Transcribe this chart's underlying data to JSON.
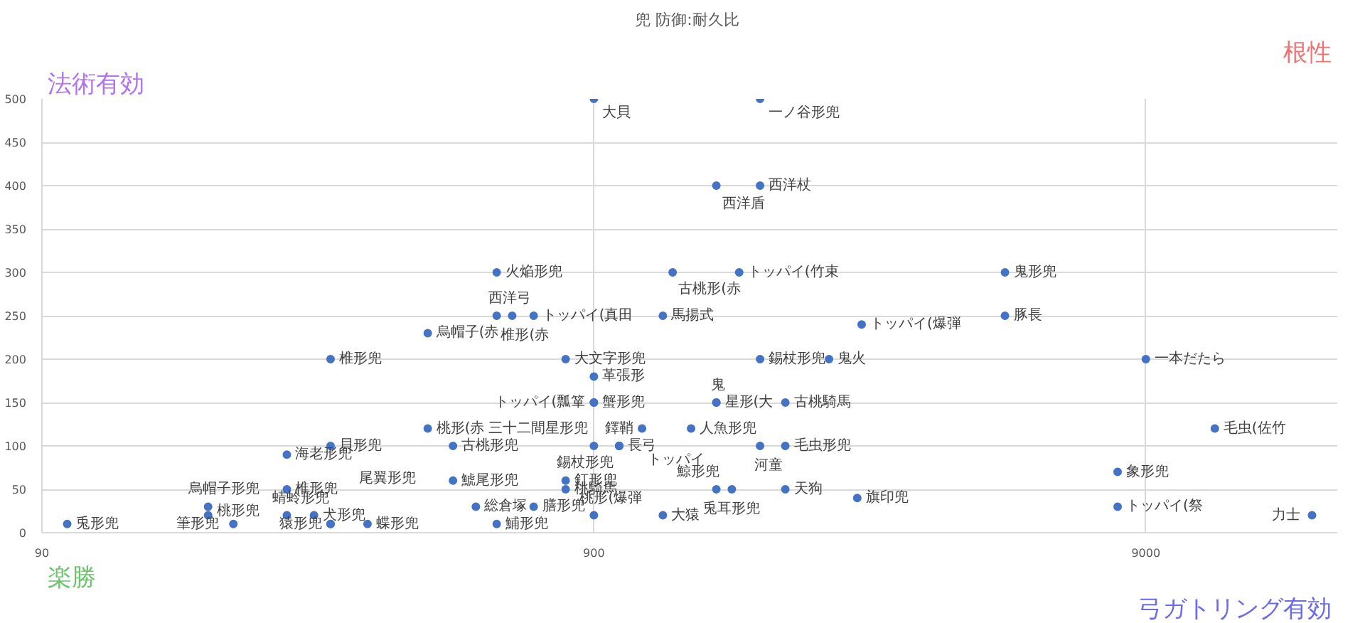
{
  "chart_data": {
    "type": "scatter",
    "title": "兜  防御:耐久比",
    "annotations": [
      "法術有効",
      "根性",
      "楽勝",
      "弓ガトリング有効"
    ],
    "log": "x",
    "xlim": [
      90,
      20000
    ],
    "xticks": [
      90,
      900,
      9000
    ],
    "ylim": [
      0,
      500
    ],
    "yticks": [
      0,
      50,
      100,
      150,
      200,
      250,
      300,
      350,
      400,
      450,
      500
    ],
    "grid": true,
    "marker": "circle",
    "series": [
      {
        "color": "#4472c4",
        "x": [
          900,
          1800,
          1500,
          1800,
          600,
          1250,
          1650,
          5000,
          600,
          640,
          700,
          1200,
          2750,
          5000,
          450,
          300,
          800,
          1800,
          2400,
          9000,
          900,
          900,
          900,
          1500,
          1500,
          2000,
          450,
          1100,
          1350,
          12000,
          300,
          500,
          900,
          1000,
          1000,
          1000,
          1800,
          2000,
          250,
          8000,
          500,
          800,
          800,
          250,
          1500,
          1600,
          2000,
          2700,
          180,
          550,
          700,
          8000,
          180,
          250,
          280,
          900,
          1200,
          18000,
          100,
          200,
          300,
          300,
          350,
          600
        ],
        "values": [
          500,
          500,
          400,
          400,
          300,
          300,
          300,
          300,
          250,
          250,
          250,
          250,
          240,
          250,
          230,
          200,
          200,
          200,
          200,
          200,
          180,
          150,
          150,
          150,
          150,
          150,
          120,
          120,
          120,
          120,
          100,
          100,
          100,
          100,
          100,
          100,
          100,
          100,
          90,
          70,
          60,
          60,
          50,
          50,
          50,
          50,
          50,
          40,
          30,
          30,
          30,
          30,
          20,
          20,
          20,
          20,
          20,
          20,
          10,
          10,
          10,
          10,
          10,
          10
        ],
        "value_labels": [
          "大貝",
          "一ノ谷形兜",
          "西洋盾",
          "西洋杖",
          "火焔形兜",
          "古桃形(赤",
          "トッパイ(竹束",
          "鬼形兜",
          "西洋弓",
          "椎形(赤",
          "トッパイ(真田",
          "馬揚式",
          "トッパイ(爆弾",
          "豚長",
          "烏帽子(赤",
          "椎形兜",
          "大文字形兜",
          "錫杖形兜",
          "鬼火",
          "一本だたら",
          "革張形",
          "蟹形兜",
          "トッパイ(瓢箪",
          "鬼",
          "星形(大",
          "古桃騎馬",
          "桃形(赤",
          "トッパイ",
          "人魚形兜",
          "毛虫(佐竹",
          "貝形兜",
          "古桃形兜",
          "三十二間星形兜",
          "長弓",
          "鐸鞘",
          "錫杖形兜",
          "河童",
          "毛虫形兜",
          "海老形兜",
          "象形兜",
          "鯱尾形兜",
          "釘形兜",
          "桃騎馬",
          "椎形兜",
          "鯨形兜",
          "兎耳形兜",
          "天狗",
          "旗印兜",
          "烏帽子形兜",
          "総倉塚",
          "膳形兜",
          "トッパイ(祭",
          "桃形兜",
          "蜻蛉形兜",
          "犬形兜",
          "桃形(爆弾",
          "大猿",
          "力士",
          "兎形兜",
          "筆形兜",
          "猿形兜",
          "尾翼形兜",
          "蝶形兜",
          "鯆形兜"
        ]
      }
    ]
  }
}
